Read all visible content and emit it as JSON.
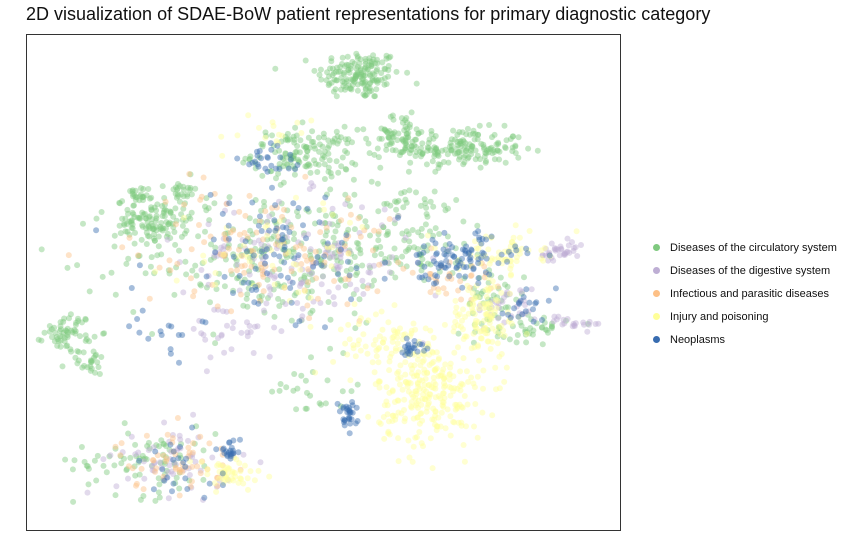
{
  "chart_data": {
    "type": "scatter",
    "title": "2D visualization of SDAE-BoW patient representations for primary diagnostic category",
    "xlabel": "",
    "ylabel": "",
    "xlim": [
      0,
      100
    ],
    "ylim": [
      0,
      100
    ],
    "axes_visible": false,
    "grid": false,
    "legend_position": "right",
    "series": [
      {
        "name": "Diseases of the circulatory system",
        "color": "#7fc97f",
        "clusters": [
          {
            "x": 56,
            "y": 92,
            "sx": 3.5,
            "sy": 2.5,
            "n": 160
          },
          {
            "x": 73,
            "y": 77,
            "sx": 5.5,
            "sy": 2.0,
            "n": 170
          },
          {
            "x": 47,
            "y": 76,
            "sx": 4.5,
            "sy": 2.5,
            "n": 140
          },
          {
            "x": 21,
            "y": 62,
            "sx": 3.0,
            "sy": 2.5,
            "n": 110
          },
          {
            "x": 7,
            "y": 40,
            "sx": 2.0,
            "sy": 1.8,
            "n": 60
          },
          {
            "x": 11,
            "y": 34,
            "sx": 1.2,
            "sy": 1.3,
            "n": 25
          },
          {
            "x": 18,
            "y": 67,
            "sx": 1.2,
            "sy": 1.2,
            "n": 22
          },
          {
            "x": 26,
            "y": 68,
            "sx": 1.3,
            "sy": 1.3,
            "n": 22
          },
          {
            "x": 63,
            "y": 80,
            "sx": 2.5,
            "sy": 2.0,
            "n": 60
          },
          {
            "x": 40,
            "y": 55,
            "sx": 12.0,
            "sy": 7.0,
            "n": 260
          },
          {
            "x": 63,
            "y": 60,
            "sx": 8.0,
            "sy": 5.0,
            "n": 120
          },
          {
            "x": 20,
            "y": 14,
            "sx": 6.0,
            "sy": 3.5,
            "n": 80
          },
          {
            "x": 85,
            "y": 41,
            "sx": 3.0,
            "sy": 1.5,
            "n": 40
          },
          {
            "x": 49,
            "y": 28,
            "sx": 4.0,
            "sy": 3.0,
            "n": 25
          },
          {
            "x": 78,
            "y": 47,
            "sx": 3.0,
            "sy": 3.0,
            "n": 40
          }
        ]
      },
      {
        "name": "Diseases of the digestive system",
        "color": "#beaed4",
        "clusters": [
          {
            "x": 46,
            "y": 55,
            "sx": 10.0,
            "sy": 6.0,
            "n": 140
          },
          {
            "x": 25,
            "y": 14,
            "sx": 5.0,
            "sy": 3.5,
            "n": 60
          },
          {
            "x": 90,
            "y": 56,
            "sx": 2.0,
            "sy": 1.2,
            "n": 35
          },
          {
            "x": 35,
            "y": 40,
            "sx": 4.0,
            "sy": 3.0,
            "n": 30
          },
          {
            "x": 81,
            "y": 45,
            "sx": 2.5,
            "sy": 2.0,
            "n": 30
          },
          {
            "x": 93,
            "y": 42,
            "sx": 2.5,
            "sy": 0.8,
            "n": 20
          }
        ]
      },
      {
        "name": "Infectious and parasitic diseases",
        "color": "#fdc086",
        "clusters": [
          {
            "x": 40,
            "y": 57,
            "sx": 11.0,
            "sy": 6.0,
            "n": 130
          },
          {
            "x": 25,
            "y": 14,
            "sx": 5.0,
            "sy": 3.0,
            "n": 55
          },
          {
            "x": 73,
            "y": 50,
            "sx": 4.0,
            "sy": 3.0,
            "n": 30
          }
        ]
      },
      {
        "name": "Injury and poisoning",
        "color": "#ffff99",
        "clusters": [
          {
            "x": 68,
            "y": 27,
            "sx": 4.5,
            "sy": 5.0,
            "n": 230
          },
          {
            "x": 62,
            "y": 37,
            "sx": 5.0,
            "sy": 3.0,
            "n": 90
          },
          {
            "x": 77,
            "y": 43,
            "sx": 2.8,
            "sy": 4.0,
            "n": 110
          },
          {
            "x": 80,
            "y": 56,
            "sx": 3.5,
            "sy": 2.0,
            "n": 60
          },
          {
            "x": 34,
            "y": 11,
            "sx": 3.0,
            "sy": 1.8,
            "n": 50
          },
          {
            "x": 44,
            "y": 56,
            "sx": 10.0,
            "sy": 6.0,
            "n": 50
          },
          {
            "x": 42,
            "y": 79,
            "sx": 3.0,
            "sy": 2.0,
            "n": 15
          }
        ]
      },
      {
        "name": "Neoplasms",
        "color": "#386cb0",
        "clusters": [
          {
            "x": 73,
            "y": 55,
            "sx": 5.0,
            "sy": 2.5,
            "n": 90
          },
          {
            "x": 54,
            "y": 23,
            "sx": 0.8,
            "sy": 1.4,
            "n": 30
          },
          {
            "x": 65,
            "y": 37,
            "sx": 1.2,
            "sy": 0.8,
            "n": 22
          },
          {
            "x": 42,
            "y": 55,
            "sx": 11.0,
            "sy": 7.0,
            "n": 90
          },
          {
            "x": 42,
            "y": 75,
            "sx": 3.0,
            "sy": 2.0,
            "n": 25
          },
          {
            "x": 34,
            "y": 16,
            "sx": 1.0,
            "sy": 1.0,
            "n": 20
          },
          {
            "x": 27,
            "y": 13,
            "sx": 5.0,
            "sy": 3.0,
            "n": 25
          },
          {
            "x": 84,
            "y": 44,
            "sx": 2.5,
            "sy": 2.5,
            "n": 20
          },
          {
            "x": 23,
            "y": 40,
            "sx": 3.0,
            "sy": 2.0,
            "n": 15
          }
        ]
      }
    ]
  }
}
